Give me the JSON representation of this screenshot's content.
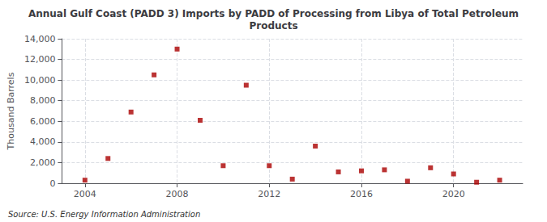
{
  "chart_data": {
    "type": "scatter",
    "title": "Annual Gulf Coast (PADD 3) Imports by PADD of Processing from Libya of Total Petroleum\nProducts",
    "ylabel": "Thousand Barrels",
    "annotation": "Source: U.S. Energy Information Administration",
    "color": "#aa0000",
    "marker": "square",
    "grid": true,
    "xlim": [
      2003,
      2023
    ],
    "xticks": [
      2004,
      2008,
      2012,
      2016,
      2020
    ],
    "ylim": [
      0,
      14000
    ],
    "yticks": [
      0,
      {
        "value": 2000,
        "label": "2,000"
      },
      {
        "value": 4000,
        "label": "4,000"
      },
      {
        "value": 6000,
        "label": "6,000"
      },
      {
        "value": 8000,
        "label": "8,000"
      },
      {
        "value": 10000,
        "label": "10,000"
      },
      {
        "value": 12000,
        "label": "12,000"
      },
      {
        "value": 14000,
        "label": "14,000"
      }
    ],
    "x": [
      2004,
      2005,
      2006,
      2007,
      2008,
      2009,
      2010,
      2011,
      2012,
      2013,
      2014,
      2015,
      2016,
      2017,
      2018,
      2019,
      2020,
      2021,
      2022
    ],
    "values": [
      300,
      2400,
      6900,
      10500,
      13000,
      6100,
      1700,
      9500,
      1700,
      400,
      3600,
      1100,
      1200,
      1300,
      200,
      1500,
      900,
      100,
      300
    ]
  }
}
